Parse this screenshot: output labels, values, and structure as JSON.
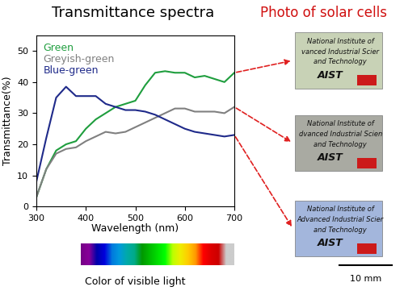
{
  "chart_data": {
    "type": "line",
    "title": "Transmittance spectra",
    "xlabel": "Wavelength (nm)",
    "ylabel": "Transmittance(%)",
    "x": [
      300,
      320,
      340,
      360,
      380,
      400,
      420,
      440,
      460,
      480,
      500,
      520,
      540,
      560,
      580,
      600,
      620,
      640,
      660,
      680,
      700
    ],
    "series": [
      {
        "name": "Green",
        "color": "#1f9e3e",
        "values": [
          3,
          12,
          18,
          20,
          21,
          25,
          28,
          30,
          32,
          33,
          34,
          39,
          43,
          43.5,
          43,
          43,
          41.5,
          42,
          41,
          40,
          43
        ]
      },
      {
        "name": "Greyish-green",
        "color": "#808080",
        "values": [
          3,
          12,
          17,
          18.5,
          19,
          21,
          22.5,
          24,
          23.5,
          24,
          25.5,
          27,
          28.5,
          30,
          31.5,
          31.5,
          30.5,
          30.5,
          30.5,
          30,
          32
        ]
      },
      {
        "name": "Blue-green",
        "color": "#1f2a8a",
        "values": [
          8,
          22,
          35,
          38.5,
          35.5,
          35.5,
          35.5,
          33,
          32,
          31,
          31,
          30.5,
          29.5,
          28,
          26.5,
          25,
          24,
          23.5,
          23,
          22.5,
          23
        ]
      }
    ],
    "xlim": [
      300,
      700
    ],
    "ylim": [
      0,
      55
    ],
    "xticks": [
      300,
      400,
      500,
      600,
      700
    ],
    "yticks": [
      0,
      10,
      20,
      30,
      40,
      50
    ],
    "legend": "upper left"
  },
  "color_bar": {
    "label": "Color of visible light",
    "range": [
      390,
      700
    ]
  },
  "photos": {
    "title": "Photo of solar cells",
    "cells": [
      {
        "series": "Green",
        "color": "#c8d2b6",
        "lines": [
          "National Institute of",
          "vanced Industrial Scier",
          "and Technology"
        ],
        "logo": "AIST"
      },
      {
        "series": "Greyish-green",
        "color": "#a9aaa2",
        "lines": [
          "National Institute of",
          "dvanced Industrial Scien",
          "and Technology"
        ],
        "logo": "AIST"
      },
      {
        "series": "Blue-green",
        "color": "#a3b6dc",
        "lines": [
          "National Institute of",
          "Advanced Industrial Scier",
          "and Technology"
        ],
        "logo": "AIST"
      }
    ]
  },
  "scale_bar": "10 mm"
}
